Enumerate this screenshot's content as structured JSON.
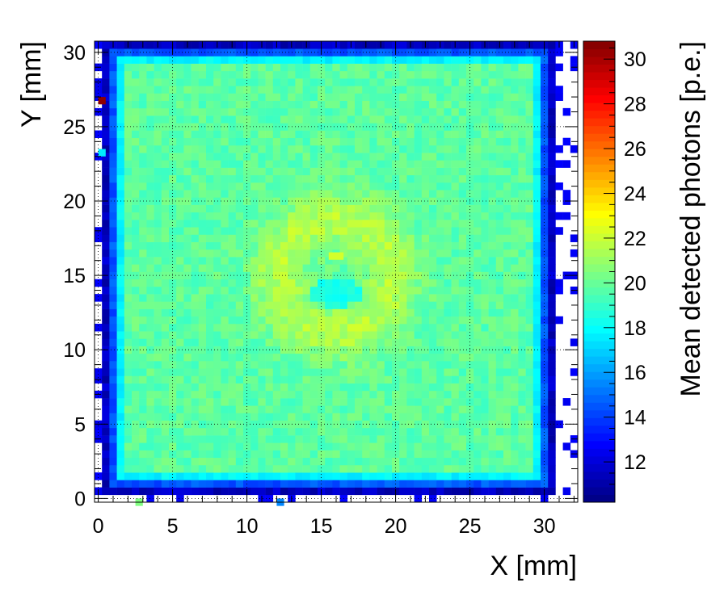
{
  "chart_data": {
    "type": "heatmap",
    "title": "",
    "xlabel": "X [mm]",
    "ylabel": "Y [mm]",
    "zlabel": "Mean detected photons [p.e.]",
    "xlim": [
      -0.25,
      32.25
    ],
    "ylim": [
      -0.25,
      30.75
    ],
    "zlim": [
      10.2,
      30.8
    ],
    "x_ticks": [
      0,
      5,
      10,
      15,
      20,
      25,
      30
    ],
    "y_ticks": [
      0,
      5,
      10,
      15,
      20,
      25,
      30
    ],
    "z_ticks": [
      12,
      14,
      16,
      18,
      20,
      22,
      24,
      26,
      28,
      30
    ],
    "grid": true,
    "colormap": "jet",
    "bin_size_mm": 0.5,
    "inner_region": {
      "x_range": [
        1.5,
        29.5
      ],
      "y_range": [
        1.5,
        29.5
      ],
      "typical_value": 19.8
    },
    "edge_ring_value": 14.5,
    "outer_ring_value": 11.5,
    "hotspot_ring": {
      "center": [
        16.0,
        15.0
      ],
      "radius_mm": 3.8,
      "value": 21.6
    },
    "central_dip": {
      "center": [
        16.0,
        13.8
      ],
      "value": 18.4
    },
    "peak_bin": {
      "x": 16.0,
      "y": 16.3,
      "value": 22.2
    },
    "outliers": [
      {
        "x": 0.25,
        "y": 26.75,
        "value": 30.5
      },
      {
        "x": 0.25,
        "y": 23.25,
        "value": 17.5
      },
      {
        "x": 2.75,
        "y": -0.25,
        "value": 20.5
      },
      {
        "x": 12.25,
        "y": -0.25,
        "value": 15.5
      }
    ]
  }
}
